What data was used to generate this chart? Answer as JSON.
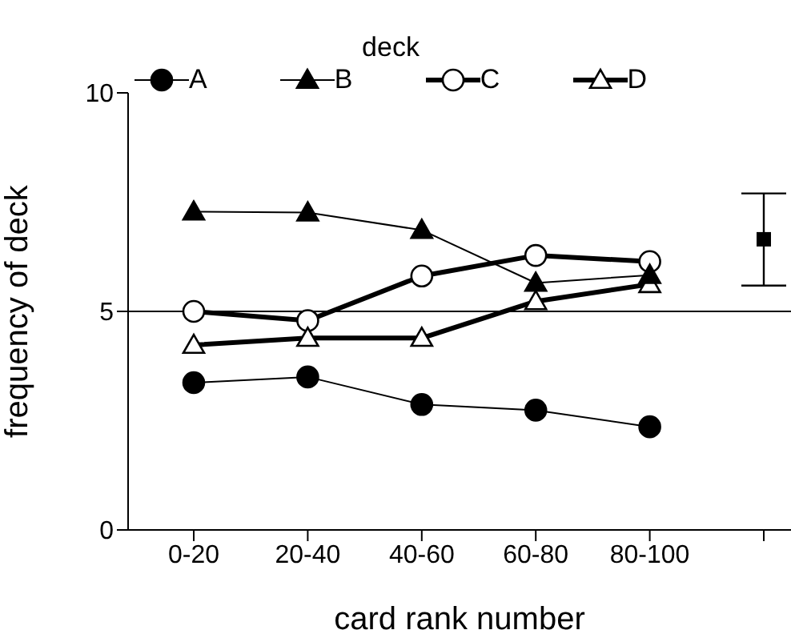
{
  "chart_data": {
    "type": "line",
    "xlabel": "card rank number",
    "ylabel": "frequency of deck",
    "legend_title": "deck",
    "legend": "top",
    "categories": [
      "0-20",
      "20-40",
      "40-60",
      "60-80",
      "80-100",
      null
    ],
    "ylim": [
      0,
      10
    ],
    "yticks": [
      0,
      5,
      10
    ],
    "grid": false,
    "series": [
      {
        "name": "A",
        "color": "#000000",
        "marker": "circle",
        "values": [
          3.37,
          3.5,
          2.87,
          2.74,
          2.36,
          null
        ]
      },
      {
        "name": "B",
        "color": "#000000",
        "marker": "triangle",
        "values": [
          7.28,
          7.26,
          6.86,
          5.65,
          5.83,
          null
        ]
      },
      {
        "name": "C",
        "color": "#000000",
        "marker": "circle",
        "values": [
          5.0,
          4.79,
          5.81,
          6.28,
          6.14,
          null
        ]
      },
      {
        "name": "D",
        "color": "#000000",
        "marker": "triangle",
        "values": [
          4.23,
          4.39,
          4.39,
          5.23,
          5.62,
          null
        ]
      },
      {
        "type": "scatter",
        "color": "#000000",
        "marker": "square",
        "values": [
          null,
          null,
          null,
          null,
          null,
          6.65
        ],
        "errors": [
          null,
          null,
          null,
          null,
          null,
          [
            5.59,
            7.7
          ]
        ]
      }
    ],
    "ref_lines": [
      {
        "axis": "y",
        "value": 5,
        "color": "#000000"
      }
    ]
  }
}
